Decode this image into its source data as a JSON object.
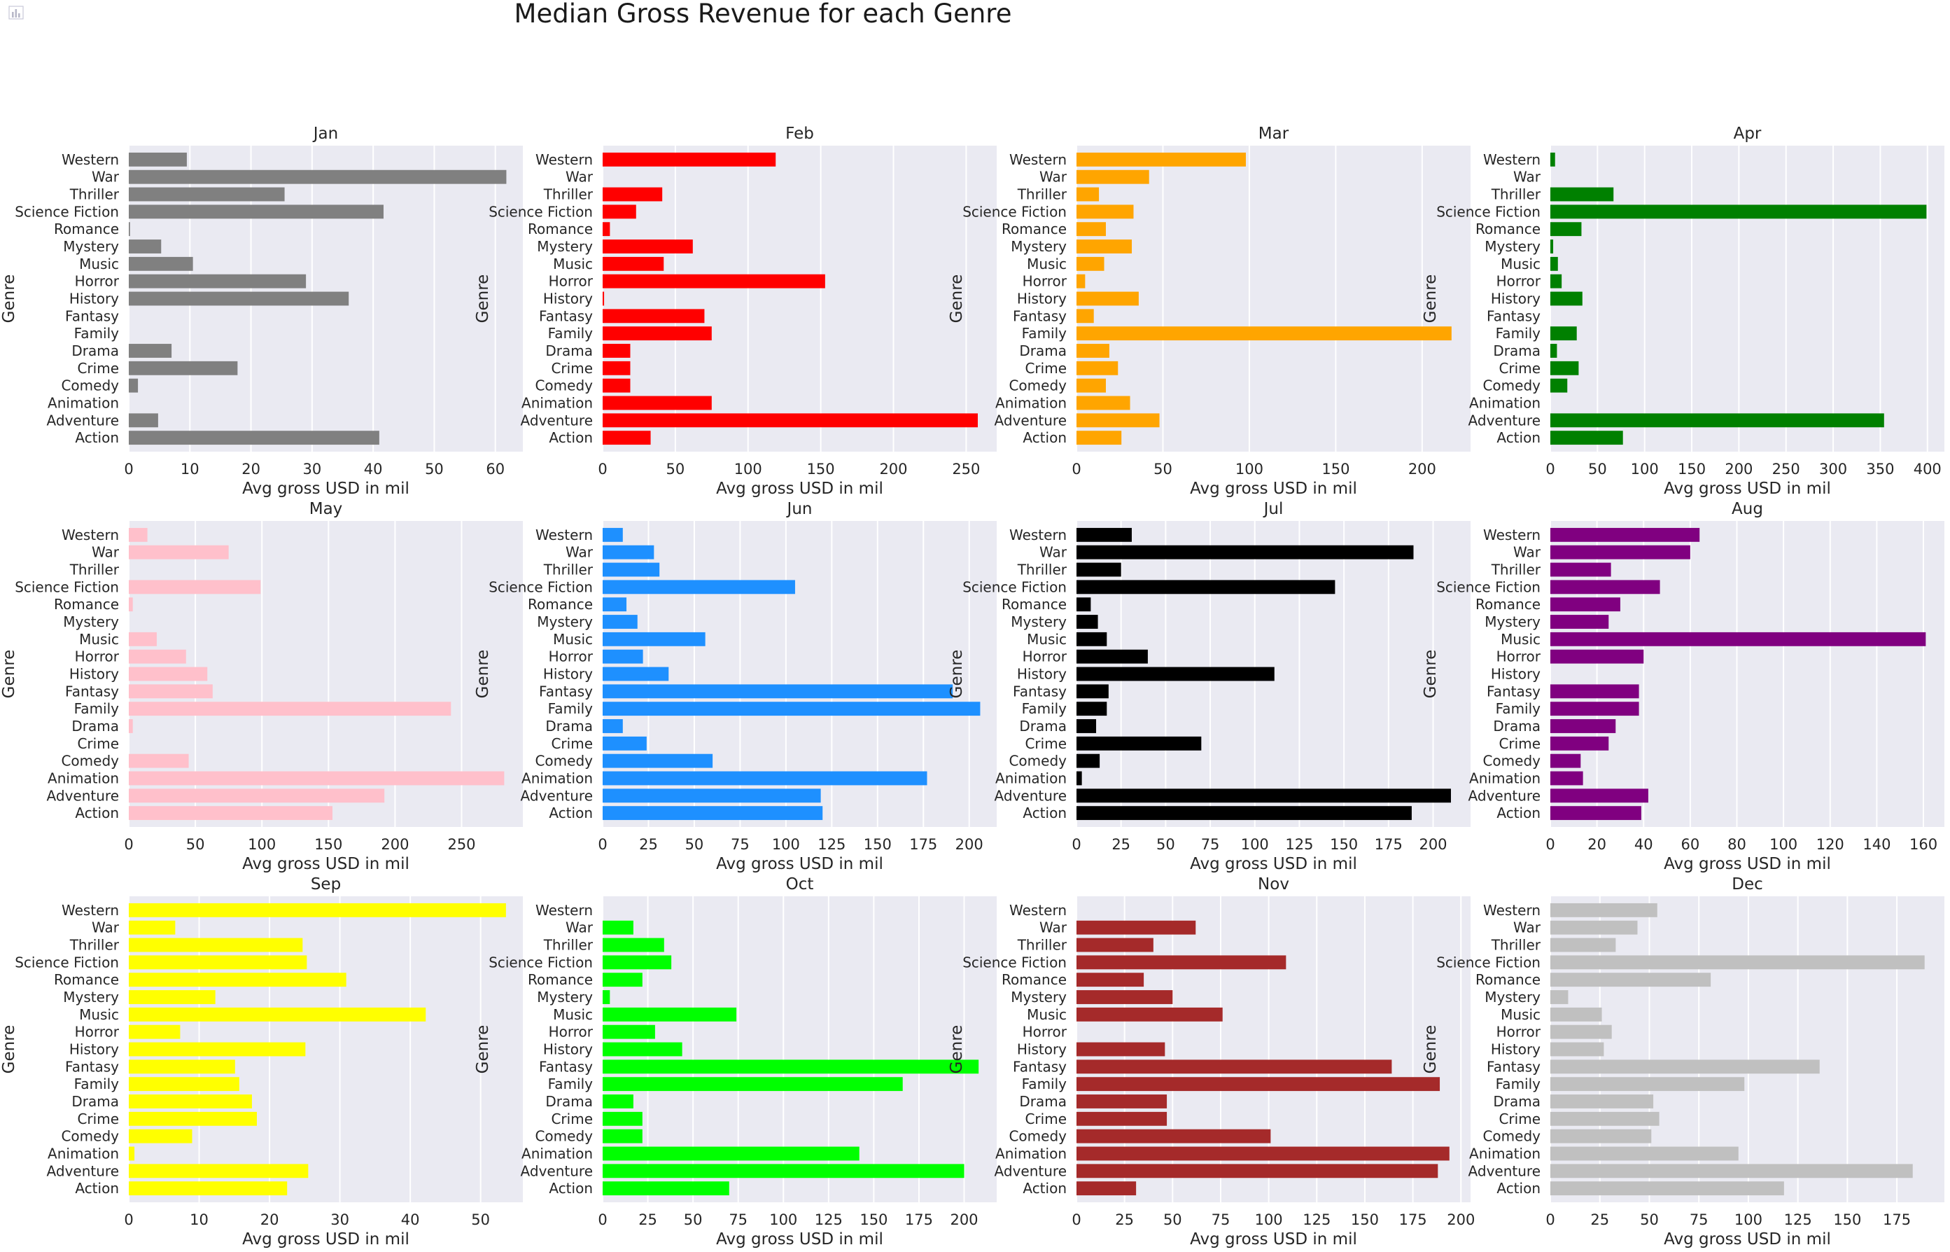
{
  "title": "Median Gross Revenue for each Genre",
  "icons": {
    "corner": "bar-chart-icon"
  },
  "chart_data": [
    {
      "type": "bar",
      "orientation": "horizontal",
      "title": "Jan",
      "color": "#808080",
      "xlabel": "Avg gross USD in mil",
      "ylabel": "Genre",
      "xlim": [
        0,
        64.5
      ],
      "xticks": [
        0,
        10,
        20,
        30,
        40,
        50,
        60
      ],
      "categories": [
        "Action",
        "Adventure",
        "Animation",
        "Comedy",
        "Crime",
        "Drama",
        "Family",
        "Fantasy",
        "History",
        "Horror",
        "Music",
        "Mystery",
        "Romance",
        "Science Fiction",
        "Thriller",
        "War",
        "Western"
      ],
      "values": [
        41,
        4.8,
        0,
        1.5,
        17.8,
        7,
        0,
        0,
        36,
        29,
        10.5,
        5.3,
        0.2,
        41.7,
        25.5,
        61.8,
        9.5
      ]
    },
    {
      "type": "bar",
      "orientation": "horizontal",
      "title": "Feb",
      "color": "#ff0000",
      "xlabel": "Avg gross USD in mil",
      "ylabel": "Genre",
      "xlim": [
        0,
        271
      ],
      "xticks": [
        0,
        50,
        100,
        150,
        200,
        250
      ],
      "categories": [
        "Action",
        "Adventure",
        "Animation",
        "Comedy",
        "Crime",
        "Drama",
        "Family",
        "Fantasy",
        "History",
        "Horror",
        "Music",
        "Mystery",
        "Romance",
        "Science Fiction",
        "Thriller",
        "War",
        "Western"
      ],
      "values": [
        33,
        258,
        75,
        19,
        19,
        19,
        75,
        70,
        1,
        153,
        42,
        62,
        5,
        23,
        41,
        0,
        119
      ]
    },
    {
      "type": "bar",
      "orientation": "horizontal",
      "title": "Mar",
      "color": "#ffa500",
      "xlabel": "Avg gross USD in mil",
      "ylabel": "Genre",
      "xlim": [
        0,
        228
      ],
      "xticks": [
        0,
        50,
        100,
        150,
        200
      ],
      "categories": [
        "Action",
        "Adventure",
        "Animation",
        "Comedy",
        "Crime",
        "Drama",
        "Family",
        "Fantasy",
        "History",
        "Horror",
        "Music",
        "Mystery",
        "Romance",
        "Science Fiction",
        "Thriller",
        "War",
        "Western"
      ],
      "values": [
        26,
        48,
        31,
        17,
        24,
        19,
        217,
        10,
        36,
        5,
        16,
        32,
        17,
        33,
        13,
        42,
        98
      ]
    },
    {
      "type": "bar",
      "orientation": "horizontal",
      "title": "Apr",
      "color": "#008000",
      "xlabel": "Avg gross USD in mil",
      "ylabel": "Genre",
      "xlim": [
        0,
        418
      ],
      "xticks": [
        0,
        50,
        100,
        150,
        200,
        250,
        300,
        350,
        400
      ],
      "categories": [
        "Action",
        "Adventure",
        "Animation",
        "Comedy",
        "Crime",
        "Drama",
        "Family",
        "Fantasy",
        "History",
        "Horror",
        "Music",
        "Mystery",
        "Romance",
        "Science Fiction",
        "Thriller",
        "War",
        "Western"
      ],
      "values": [
        77,
        354,
        0,
        18,
        30,
        7,
        28,
        0,
        34,
        12,
        8,
        3,
        33,
        399,
        67,
        0,
        5
      ]
    },
    {
      "type": "bar",
      "orientation": "horizontal",
      "title": "May",
      "color": "#ffc0cb",
      "xlabel": "Avg gross USD in mil",
      "ylabel": "Genre",
      "xlim": [
        0,
        296
      ],
      "xticks": [
        0,
        50,
        100,
        150,
        200,
        250
      ],
      "categories": [
        "Action",
        "Adventure",
        "Animation",
        "Comedy",
        "Crime",
        "Drama",
        "Family",
        "Fantasy",
        "History",
        "Horror",
        "Music",
        "Mystery",
        "Romance",
        "Science Fiction",
        "Thriller",
        "War",
        "Western"
      ],
      "values": [
        153,
        192,
        282,
        45,
        0,
        3,
        242,
        63,
        59,
        43,
        21,
        0,
        3,
        99,
        0,
        75,
        14
      ]
    },
    {
      "type": "bar",
      "orientation": "horizontal",
      "title": "Jun",
      "color": "#1e90ff",
      "xlabel": "Avg gross USD in mil",
      "ylabel": "Genre",
      "xlim": [
        0,
        215
      ],
      "xticks": [
        0,
        25,
        50,
        75,
        100,
        125,
        150,
        175,
        200
      ],
      "categories": [
        "Action",
        "Adventure",
        "Animation",
        "Comedy",
        "Crime",
        "Drama",
        "Family",
        "Fantasy",
        "History",
        "Horror",
        "Music",
        "Mystery",
        "Romance",
        "Science Fiction",
        "Thriller",
        "War",
        "Western"
      ],
      "values": [
        120,
        119,
        177,
        60,
        24,
        11,
        206,
        191,
        36,
        22,
        56,
        19,
        13,
        105,
        31,
        28,
        11
      ]
    },
    {
      "type": "bar",
      "orientation": "horizontal",
      "title": "Jul",
      "color": "#000000",
      "xlabel": "Avg gross USD in mil",
      "ylabel": "Genre",
      "xlim": [
        0,
        221
      ],
      "xticks": [
        0,
        25,
        50,
        75,
        100,
        125,
        150,
        175,
        200
      ],
      "categories": [
        "Action",
        "Adventure",
        "Animation",
        "Comedy",
        "Crime",
        "Drama",
        "Family",
        "Fantasy",
        "History",
        "Horror",
        "Music",
        "Mystery",
        "Romance",
        "Science Fiction",
        "Thriller",
        "War",
        "Western"
      ],
      "values": [
        188,
        210,
        3,
        13,
        70,
        11,
        17,
        18,
        111,
        40,
        17,
        12,
        8,
        145,
        25,
        189,
        31
      ]
    },
    {
      "type": "bar",
      "orientation": "horizontal",
      "title": "Aug",
      "color": "#800080",
      "xlabel": "Avg gross USD in mil",
      "ylabel": "Genre",
      "xlim": [
        0,
        169
      ],
      "xticks": [
        0,
        20,
        40,
        60,
        80,
        100,
        120,
        140,
        160
      ],
      "categories": [
        "Action",
        "Adventure",
        "Animation",
        "Comedy",
        "Crime",
        "Drama",
        "Family",
        "Fantasy",
        "History",
        "Horror",
        "Music",
        "Mystery",
        "Romance",
        "Science Fiction",
        "Thriller",
        "War",
        "Western"
      ],
      "values": [
        39,
        42,
        14,
        13,
        25,
        28,
        38,
        38,
        0,
        40,
        161,
        25,
        30,
        47,
        26,
        60,
        64
      ]
    },
    {
      "type": "bar",
      "orientation": "horizontal",
      "title": "Sep",
      "color": "#ffff00",
      "xlabel": "Avg gross USD in mil",
      "ylabel": "Genre",
      "xlim": [
        0,
        56
      ],
      "xticks": [
        0,
        10,
        20,
        30,
        40,
        50
      ],
      "categories": [
        "Action",
        "Adventure",
        "Animation",
        "Comedy",
        "Crime",
        "Drama",
        "Family",
        "Fantasy",
        "History",
        "Horror",
        "Music",
        "Mystery",
        "Romance",
        "Science Fiction",
        "Thriller",
        "War",
        "Western"
      ],
      "values": [
        22.5,
        25.5,
        0.8,
        9,
        18.2,
        17.5,
        15.7,
        15.1,
        25.1,
        7.3,
        42.2,
        12.3,
        30.9,
        25.3,
        24.7,
        6.6,
        53.6
      ]
    },
    {
      "type": "bar",
      "orientation": "horizontal",
      "title": "Oct",
      "color": "#00ff00",
      "xlabel": "Avg gross USD in mil",
      "ylabel": "Genre",
      "xlim": [
        0,
        218
      ],
      "xticks": [
        0,
        25,
        50,
        75,
        100,
        125,
        150,
        175,
        200
      ],
      "categories": [
        "Action",
        "Adventure",
        "Animation",
        "Comedy",
        "Crime",
        "Drama",
        "Family",
        "Fantasy",
        "History",
        "Horror",
        "Music",
        "Mystery",
        "Romance",
        "Science Fiction",
        "Thriller",
        "War",
        "Western"
      ],
      "values": [
        70,
        200,
        142,
        22,
        22,
        17,
        166,
        208,
        44,
        29,
        74,
        4,
        22,
        38,
        34,
        17,
        0
      ]
    },
    {
      "type": "bar",
      "orientation": "horizontal",
      "title": "Nov",
      "color": "#a52a2a",
      "xlabel": "Avg gross USD in mil",
      "ylabel": "Genre",
      "xlim": [
        0,
        205
      ],
      "xticks": [
        0,
        25,
        50,
        75,
        100,
        125,
        150,
        175,
        200
      ],
      "categories": [
        "Action",
        "Adventure",
        "Animation",
        "Comedy",
        "Crime",
        "Drama",
        "Family",
        "Fantasy",
        "History",
        "Horror",
        "Music",
        "Mystery",
        "Romance",
        "Science Fiction",
        "Thriller",
        "War",
        "Western"
      ],
      "values": [
        31,
        188,
        194,
        101,
        47,
        47,
        189,
        164,
        46,
        0,
        76,
        50,
        35,
        109,
        40,
        62,
        0
      ]
    },
    {
      "type": "bar",
      "orientation": "horizontal",
      "title": "Dec",
      "color": "#c0c0c0",
      "xlabel": "Avg gross USD in mil",
      "ylabel": "Genre",
      "xlim": [
        0,
        199
      ],
      "xticks": [
        0,
        25,
        50,
        75,
        100,
        125,
        150,
        175
      ],
      "categories": [
        "Action",
        "Adventure",
        "Animation",
        "Comedy",
        "Crime",
        "Drama",
        "Family",
        "Fantasy",
        "History",
        "Horror",
        "Music",
        "Mystery",
        "Romance",
        "Science Fiction",
        "Thriller",
        "War",
        "Western"
      ],
      "values": [
        118,
        183,
        95,
        51,
        55,
        52,
        98,
        136,
        27,
        31,
        26,
        9,
        81,
        189,
        33,
        44,
        54
      ]
    }
  ]
}
